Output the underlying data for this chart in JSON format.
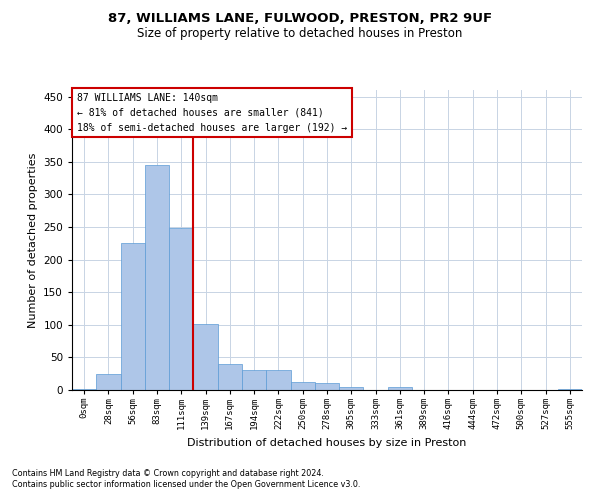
{
  "title1": "87, WILLIAMS LANE, FULWOOD, PRESTON, PR2 9UF",
  "title2": "Size of property relative to detached houses in Preston",
  "xlabel": "Distribution of detached houses by size in Preston",
  "ylabel": "Number of detached properties",
  "footnote1": "Contains HM Land Registry data © Crown copyright and database right 2024.",
  "footnote2": "Contains public sector information licensed under the Open Government Licence v3.0.",
  "annotation_line1": "87 WILLIAMS LANE: 140sqm",
  "annotation_line2": "← 81% of detached houses are smaller (841)",
  "annotation_line3": "18% of semi-detached houses are larger (192) →",
  "bar_color": "#aec6e8",
  "bar_edge_color": "#5b9bd5",
  "vline_color": "#cc0000",
  "annotation_box_color": "#cc0000",
  "background_color": "#ffffff",
  "grid_color": "#c8d4e4",
  "categories": [
    "0sqm",
    "28sqm",
    "56sqm",
    "83sqm",
    "111sqm",
    "139sqm",
    "167sqm",
    "194sqm",
    "222sqm",
    "250sqm",
    "278sqm",
    "305sqm",
    "333sqm",
    "361sqm",
    "389sqm",
    "416sqm",
    "444sqm",
    "472sqm",
    "500sqm",
    "527sqm",
    "555sqm"
  ],
  "values": [
    2,
    25,
    225,
    345,
    248,
    101,
    40,
    30,
    30,
    12,
    10,
    5,
    0,
    5,
    0,
    0,
    0,
    0,
    0,
    0,
    2
  ],
  "ylim": [
    0,
    460
  ],
  "yticks": [
    0,
    50,
    100,
    150,
    200,
    250,
    300,
    350,
    400,
    450
  ],
  "vline_x_idx": 4.5
}
